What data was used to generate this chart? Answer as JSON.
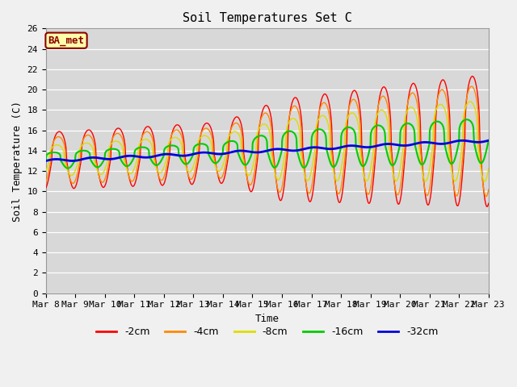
{
  "title": "Soil Temperatures Set C",
  "xlabel": "Time",
  "ylabel": "Soil Temperature (C)",
  "annotation": "BA_met",
  "ylim": [
    0,
    26
  ],
  "yticks": [
    0,
    2,
    4,
    6,
    8,
    10,
    12,
    14,
    16,
    18,
    20,
    22,
    24,
    26
  ],
  "xtick_labels": [
    "Mar 8",
    "Mar 9",
    "Mar 10",
    "Mar 11",
    "Mar 12",
    "Mar 13",
    "Mar 14",
    "Mar 15",
    "Mar 16",
    "Mar 17",
    "Mar 18",
    "Mar 19",
    "Mar 20",
    "Mar 21",
    "Mar 22",
    "Mar 23"
  ],
  "series": {
    "-2cm": {
      "color": "#ff0000",
      "lw": 1.0
    },
    "-4cm": {
      "color": "#ff8800",
      "lw": 1.0
    },
    "-8cm": {
      "color": "#dddd00",
      "lw": 1.0
    },
    "-16cm": {
      "color": "#00cc00",
      "lw": 1.5
    },
    "-32cm": {
      "color": "#0000dd",
      "lw": 2.0
    }
  },
  "legend_labels": [
    "-2cm",
    "-4cm",
    "-8cm",
    "-16cm",
    "-32cm"
  ],
  "legend_colors": [
    "#ff0000",
    "#ff8800",
    "#dddd00",
    "#00cc00",
    "#0000dd"
  ],
  "fig_bg_color": "#f0f0f0",
  "plot_bg_color": "#d8d8d8",
  "title_fontsize": 11,
  "axis_fontsize": 9,
  "tick_fontsize": 8
}
